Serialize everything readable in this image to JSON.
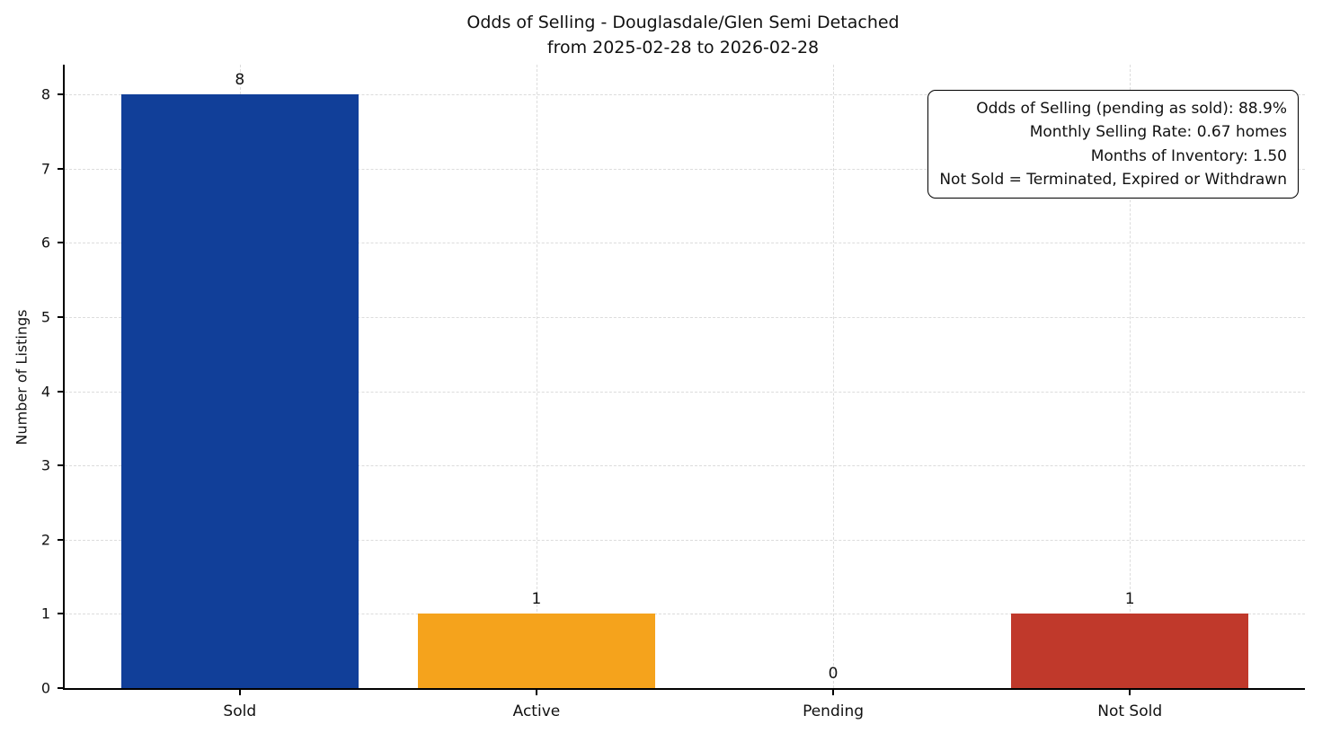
{
  "chart_data": {
    "type": "bar",
    "title": "Odds of Selling - Douglasdale/Glen Semi Detached",
    "subtitle": "from 2025-02-28 to 2026-02-28",
    "categories": [
      "Sold",
      "Active",
      "Pending",
      "Not Sold"
    ],
    "values": [
      8,
      1,
      0,
      1
    ],
    "bar_colors": [
      "#113f99",
      "#f5a31c",
      "#bbbbbb",
      "#c0392b"
    ],
    "value_labels": [
      "8",
      "1",
      "0",
      "1"
    ],
    "xlabel": "",
    "ylabel": "Number of Listings",
    "yticks": [
      0,
      1,
      2,
      3,
      4,
      5,
      6,
      7,
      8
    ],
    "ylim": [
      0,
      8.4
    ],
    "grid": true,
    "legend_position": "none",
    "annotation_lines": [
      "Odds of Selling (pending as sold): 88.9%",
      "Monthly Selling Rate: 0.67 homes",
      "Months of Inventory: 1.50",
      "Not Sold = Terminated, Expired or Withdrawn"
    ]
  }
}
